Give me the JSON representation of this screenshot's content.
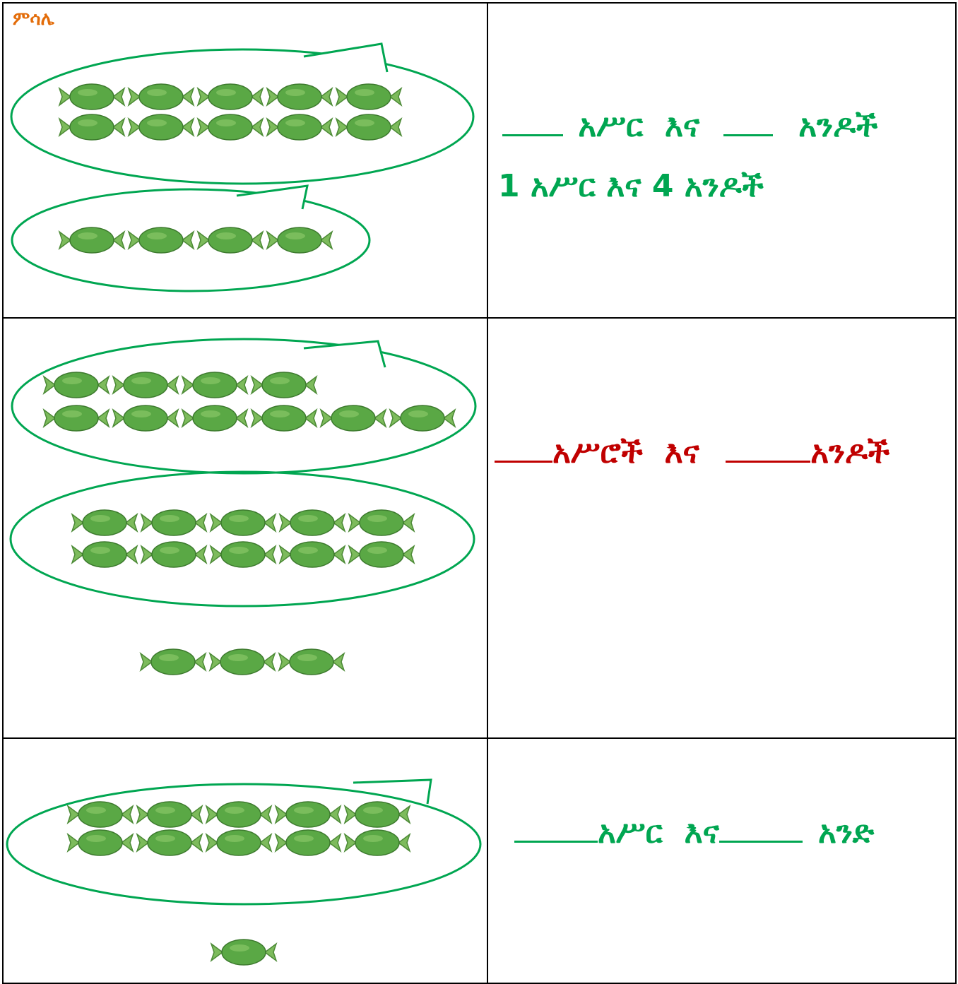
{
  "example_label": "ምሳሌ",
  "rows": [
    {
      "prompt": [
        "አሥር",
        "እና",
        "አንዶች"
      ],
      "answer": "1 አሥር እና 4 አንዶች"
    },
    {
      "prompt": [
        "አሥሮች",
        "እና",
        "አንዶች"
      ]
    },
    {
      "prompt": [
        "አሥር",
        "እና",
        "አንድ"
      ]
    }
  ]
}
